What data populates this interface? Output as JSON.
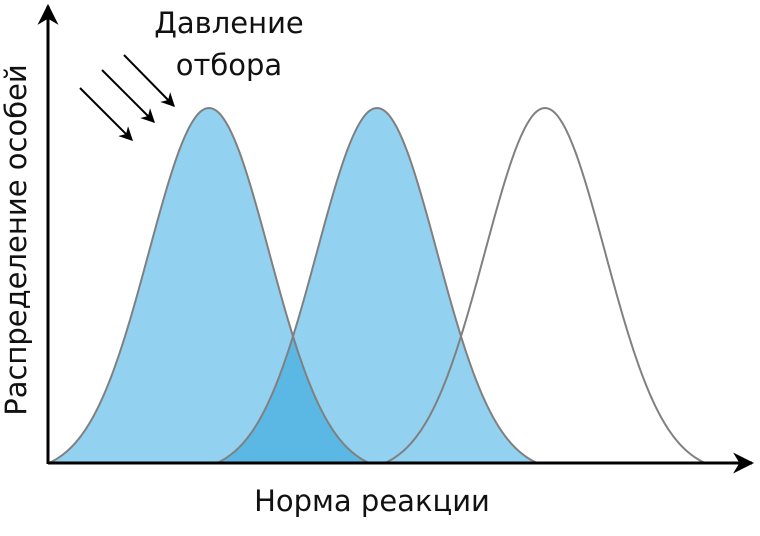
{
  "labels": {
    "pressure_line1": "Давление",
    "pressure_line2": "отбора",
    "y_axis": "Распределение особей",
    "x_axis": "Норма реакции"
  },
  "colors": {
    "fill": "#92d1ef",
    "overlap": "#5bb8e4",
    "outline": "#808080",
    "axis": "#000000"
  },
  "distributions": [
    {
      "filled": true
    },
    {
      "filled": true
    },
    {
      "filled": false
    }
  ]
}
